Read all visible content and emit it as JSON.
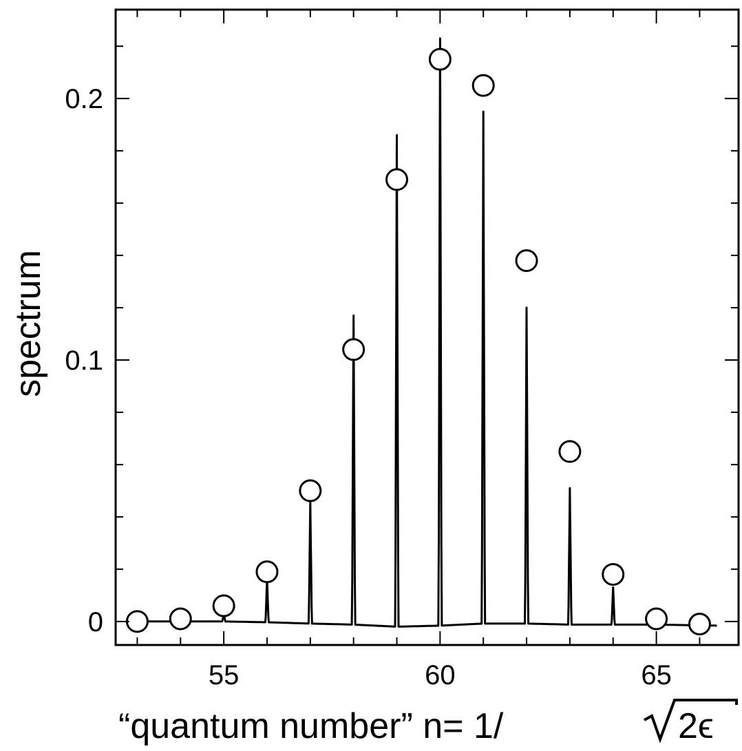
{
  "chart_data": {
    "type": "line",
    "xlabel": "“quantum  number”  n= 1/ √2ϵ",
    "xlabel_parts": {
      "prefix": "“quantum  number”  n= 1/",
      "radicand": "2ϵ"
    },
    "ylabel": "spectrum",
    "xlim": [
      52.5,
      66.9
    ],
    "ylim": [
      -0.009,
      0.234
    ],
    "x_ticks": [
      55,
      60,
      65
    ],
    "x_tick_labels": [
      "55",
      "60",
      "65"
    ],
    "y_ticks": [
      0,
      0.1,
      0.2
    ],
    "y_tick_labels": [
      "0",
      "0.1",
      "0.2"
    ],
    "x_minor_step": 1,
    "y_minor_step": 0.02,
    "grid": false,
    "series": [
      {
        "kind": "line",
        "peaks": [
          {
            "x": 54,
            "y": 0.0
          },
          {
            "x": 55,
            "y": 0.003
          },
          {
            "x": 56,
            "y": 0.016
          },
          {
            "x": 57,
            "y": 0.046
          },
          {
            "x": 58,
            "y": 0.117
          },
          {
            "x": 59,
            "y": 0.186
          },
          {
            "x": 60,
            "y": 0.223
          },
          {
            "x": 61,
            "y": 0.195
          },
          {
            "x": 62,
            "y": 0.12
          },
          {
            "x": 63,
            "y": 0.051
          },
          {
            "x": 64,
            "y": 0.013
          }
        ],
        "baseline": [
          {
            "x": 53.0,
            "y": 0.0
          },
          {
            "x": 55.0,
            "y": 0.0
          },
          {
            "x": 56.0,
            "y": -0.0003
          },
          {
            "x": 57.0,
            "y": -0.0008
          },
          {
            "x": 58.0,
            "y": -0.0012
          },
          {
            "x": 59.0,
            "y": -0.002
          },
          {
            "x": 60.0,
            "y": -0.0016
          },
          {
            "x": 61.0,
            "y": -0.0008
          },
          {
            "x": 62.0,
            "y": -0.0008
          },
          {
            "x": 63.0,
            "y": -0.0012
          },
          {
            "x": 64.0,
            "y": -0.0012
          },
          {
            "x": 65.0,
            "y": -0.0012
          },
          {
            "x": 66.4,
            "y": -0.0016
          }
        ]
      },
      {
        "kind": "scatter",
        "marker": "open-circle",
        "points": [
          {
            "x": 53,
            "y": 0.0
          },
          {
            "x": 54,
            "y": 0.001
          },
          {
            "x": 55,
            "y": 0.006
          },
          {
            "x": 56,
            "y": 0.019
          },
          {
            "x": 57,
            "y": 0.05
          },
          {
            "x": 58,
            "y": 0.104
          },
          {
            "x": 59,
            "y": 0.169
          },
          {
            "x": 60,
            "y": 0.215
          },
          {
            "x": 61,
            "y": 0.205
          },
          {
            "x": 62,
            "y": 0.138
          },
          {
            "x": 63,
            "y": 0.065
          },
          {
            "x": 64,
            "y": 0.018
          },
          {
            "x": 65,
            "y": 0.001
          },
          {
            "x": 66,
            "y": -0.001
          }
        ]
      }
    ]
  }
}
